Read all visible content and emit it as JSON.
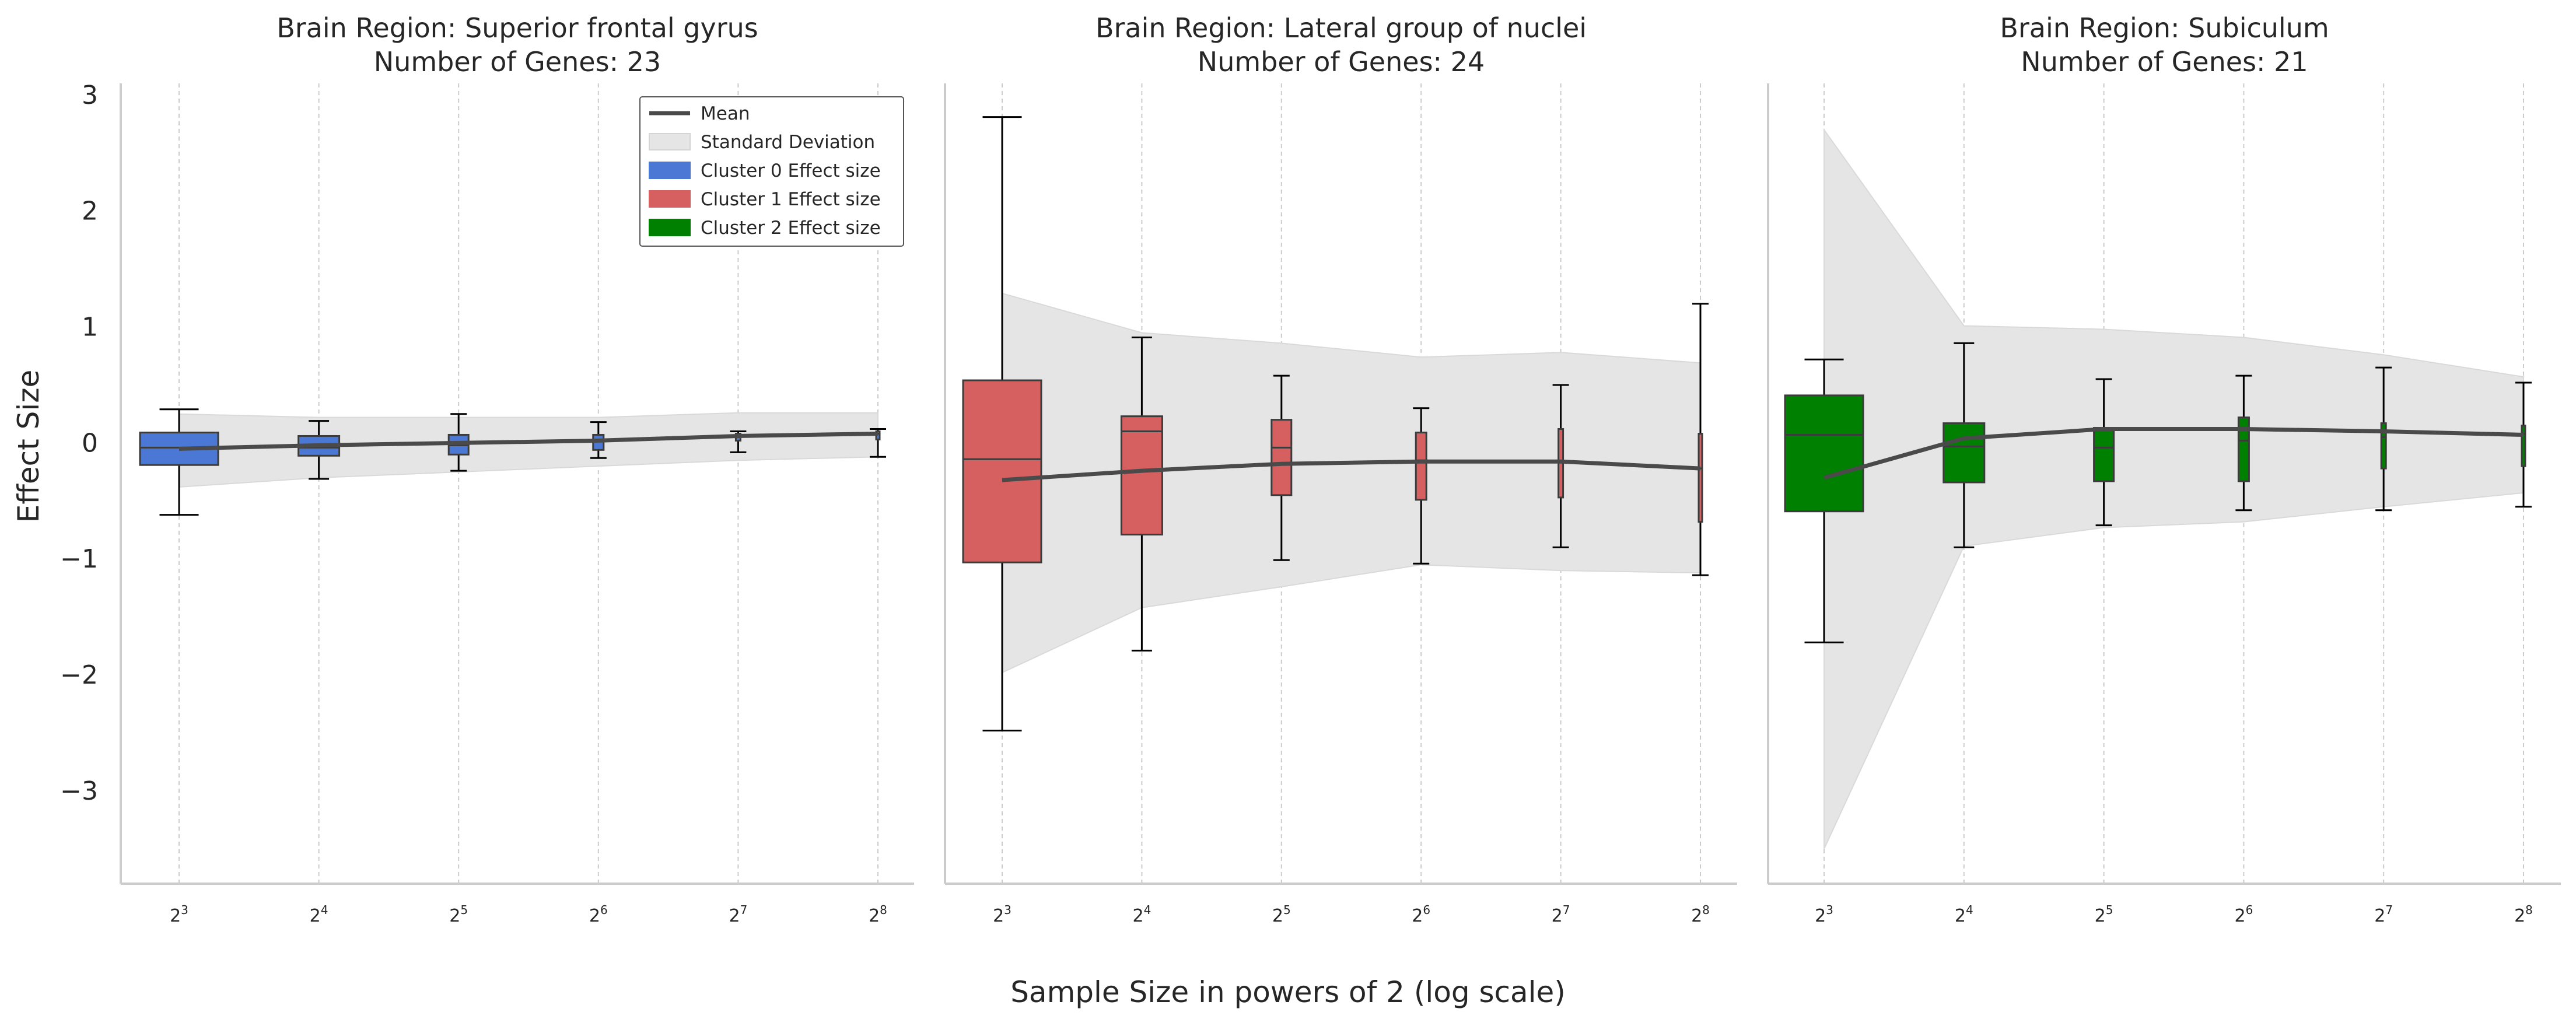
{
  "figure": {
    "xlabel": "Sample Size in powers of 2 (log scale)",
    "ylabel": "Effect Size"
  },
  "legend": {
    "items": [
      {
        "label": "Mean",
        "kind": "line",
        "color": "#4a4a4a"
      },
      {
        "label": "Standard Deviation",
        "kind": "patch",
        "color": "#e5e5e5"
      },
      {
        "label": "Cluster 0 Effect size",
        "kind": "patch",
        "color": "#4a78d4"
      },
      {
        "label": "Cluster 1 Effect size",
        "kind": "patch",
        "color": "#d65f5f"
      },
      {
        "label": "Cluster 2 Effect size",
        "kind": "patch",
        "color": "#008000"
      }
    ]
  },
  "chart_data": [
    {
      "type": "box",
      "title": "Brain Region: Superior frontal gyrus",
      "subtitle": "Number of Genes: 23",
      "color": "#4a78d4",
      "x_exponents": [
        3,
        4,
        5,
        6,
        7,
        8
      ],
      "ylim": [
        -3.8,
        3.1
      ],
      "yticks": [
        3,
        2,
        1,
        0,
        -1,
        -2,
        -3
      ],
      "grid": "x-dashed",
      "mean": [
        -0.05,
        -0.02,
        0.0,
        0.02,
        0.06,
        0.08
      ],
      "sd_upper": [
        0.25,
        0.22,
        0.22,
        0.22,
        0.26,
        0.26
      ],
      "sd_lower": [
        -0.38,
        -0.3,
        -0.25,
        -0.2,
        -0.15,
        -0.12
      ],
      "boxes": [
        {
          "x": 3,
          "q1": -0.19,
          "median": -0.04,
          "q3": 0.09,
          "whislo": -0.62,
          "whishi": 0.29
        },
        {
          "x": 4,
          "q1": -0.11,
          "median": -0.04,
          "q3": 0.06,
          "whislo": -0.31,
          "whishi": 0.19
        },
        {
          "x": 5,
          "q1": -0.1,
          "median": -0.02,
          "q3": 0.07,
          "whislo": -0.24,
          "whishi": 0.25
        },
        {
          "x": 6,
          "q1": -0.06,
          "median": 0.02,
          "q3": 0.07,
          "whislo": -0.13,
          "whishi": 0.18
        },
        {
          "x": 7,
          "q1": 0.02,
          "median": 0.05,
          "q3": 0.08,
          "whislo": -0.08,
          "whishi": 0.1
        },
        {
          "x": 8,
          "q1": 0.03,
          "median": 0.08,
          "q3": 0.1,
          "whislo": -0.12,
          "whishi": 0.12
        }
      ]
    },
    {
      "type": "box",
      "title": "Brain Region: Lateral group of nuclei",
      "subtitle": "Number of Genes: 24",
      "color": "#d65f5f",
      "x_exponents": [
        3,
        4,
        5,
        6,
        7,
        8
      ],
      "ylim": [
        -3.8,
        3.1
      ],
      "grid": "x-dashed",
      "mean": [
        -0.32,
        -0.24,
        -0.18,
        -0.16,
        -0.16,
        -0.22
      ],
      "sd_upper": [
        1.29,
        0.95,
        0.86,
        0.74,
        0.78,
        0.69
      ],
      "sd_lower": [
        -1.98,
        -1.42,
        -1.24,
        -1.05,
        -1.1,
        -1.12
      ],
      "boxes": [
        {
          "x": 3,
          "q1": -1.03,
          "median": -0.14,
          "q3": 0.54,
          "whislo": -2.48,
          "whishi": 2.81
        },
        {
          "x": 4,
          "q1": -0.79,
          "median": 0.1,
          "q3": 0.23,
          "whislo": -1.79,
          "whishi": 0.91
        },
        {
          "x": 5,
          "q1": -0.45,
          "median": -0.04,
          "q3": 0.2,
          "whislo": -1.01,
          "whishi": 0.58
        },
        {
          "x": 6,
          "q1": -0.49,
          "median": -0.15,
          "q3": 0.09,
          "whislo": -1.04,
          "whishi": 0.3
        },
        {
          "x": 7,
          "q1": -0.47,
          "median": -0.16,
          "q3": 0.12,
          "whislo": -0.9,
          "whishi": 0.5
        },
        {
          "x": 8,
          "q1": -0.68,
          "median": -0.22,
          "q3": 0.08,
          "whislo": -1.14,
          "whishi": 1.2
        }
      ]
    },
    {
      "type": "box",
      "title": "Brain Region: Subiculum",
      "subtitle": "Number of Genes: 21",
      "color": "#008000",
      "x_exponents": [
        3,
        4,
        5,
        6,
        7,
        8
      ],
      "ylim": [
        -3.8,
        3.1
      ],
      "grid": "x-dashed",
      "mean": [
        -0.3,
        0.04,
        0.12,
        0.12,
        0.1,
        0.07
      ],
      "sd_upper": [
        2.7,
        1.01,
        0.98,
        0.91,
        0.76,
        0.57
      ],
      "sd_lower": [
        -3.5,
        -0.89,
        -0.73,
        -0.68,
        -0.55,
        -0.43
      ],
      "boxes": [
        {
          "x": 3,
          "q1": -0.59,
          "median": 0.07,
          "q3": 0.41,
          "whislo": -1.72,
          "whishi": 0.72
        },
        {
          "x": 4,
          "q1": -0.34,
          "median": -0.03,
          "q3": 0.17,
          "whislo": -0.9,
          "whishi": 0.86
        },
        {
          "x": 5,
          "q1": -0.33,
          "median": -0.04,
          "q3": 0.13,
          "whislo": -0.71,
          "whishi": 0.55
        },
        {
          "x": 6,
          "q1": -0.33,
          "median": 0.02,
          "q3": 0.22,
          "whislo": -0.58,
          "whishi": 0.58
        },
        {
          "x": 7,
          "q1": -0.22,
          "median": 0.05,
          "q3": 0.17,
          "whislo": -0.58,
          "whishi": 0.65
        },
        {
          "x": 8,
          "q1": -0.2,
          "median": 0.08,
          "q3": 0.15,
          "whislo": -0.55,
          "whishi": 0.52
        }
      ]
    }
  ]
}
